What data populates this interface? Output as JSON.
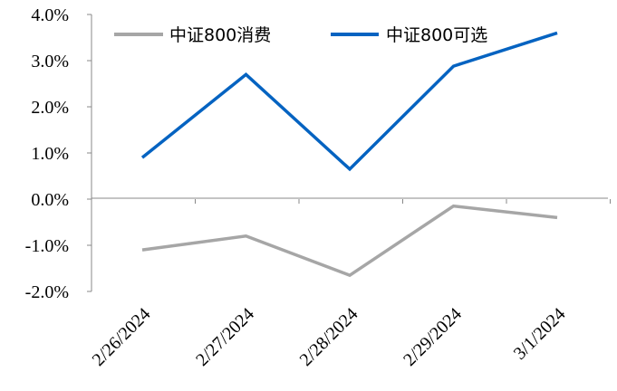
{
  "chart_data": {
    "type": "line",
    "categories": [
      "2/26/2024",
      "2/27/2024",
      "2/28/2024",
      "2/29/2024",
      "3/1/2024"
    ],
    "series": [
      {
        "name": "中证800消费",
        "color": "#a6a6a6",
        "values": [
          -1.1,
          -0.8,
          -1.65,
          -0.15,
          -0.4
        ]
      },
      {
        "name": "中证800可选",
        "color": "#0563c1",
        "values": [
          0.9,
          2.7,
          0.65,
          2.88,
          3.6
        ]
      }
    ],
    "y_ticks": [
      "4.0%",
      "3.0%",
      "2.0%",
      "1.0%",
      "0.0%",
      "-1.0%",
      "-2.0%"
    ],
    "y_tick_values": [
      4,
      3,
      2,
      1,
      0,
      -1,
      -2
    ],
    "ylim": [
      -2,
      4
    ],
    "unit": "%",
    "grid": false,
    "legend_position": "top"
  }
}
